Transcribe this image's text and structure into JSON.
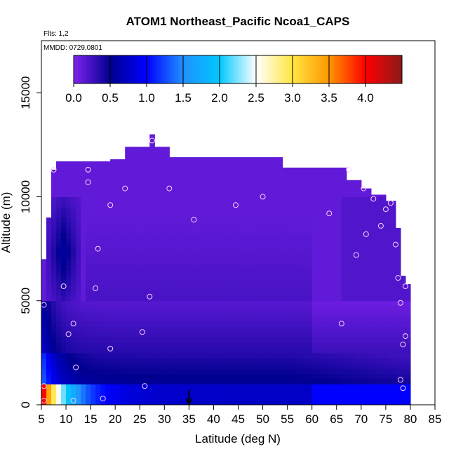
{
  "chart_data": {
    "type": "heatmap",
    "title": "ATOM1 Northeast_Pacific Ncoa1_CAPS",
    "flights_label": "Flts: 1,2",
    "dates_label": "MMDD: 0729,0801",
    "xlabel": "Latitude (deg N)",
    "ylabel": "Altitude (m)",
    "xlim": [
      5,
      85
    ],
    "ylim": [
      0,
      17500
    ],
    "x_ticks": [
      "5",
      "10",
      "15",
      "20",
      "25",
      "30",
      "35",
      "40",
      "45",
      "50",
      "55",
      "60",
      "65",
      "70",
      "75",
      "80",
      "85"
    ],
    "y_ticks": [
      "0",
      "5000",
      "10000",
      "15000"
    ],
    "colorbar": {
      "range": [
        0,
        4.5
      ],
      "tick_labels": [
        "0.0",
        "0.5",
        "1.0",
        "1.5",
        "2.0",
        "2.5",
        "3.0",
        "3.5",
        "4.0"
      ],
      "colors": [
        "#7f22ee",
        "#00008f",
        "#0000ff",
        "#2090ff",
        "#00c8ff",
        "#ffffff",
        "#ffe640",
        "#ff9600",
        "#ff0000",
        "#8b1a1a"
      ]
    },
    "grid": false,
    "legend": "colorbar-top",
    "arrow_marker_latitude": 35,
    "profile_points": [
      [
        5.5,
        4800
      ],
      [
        5.5,
        900
      ],
      [
        5.5,
        200
      ],
      [
        7.5,
        11300
      ],
      [
        9.5,
        5700
      ],
      [
        10.5,
        3400
      ],
      [
        11.5,
        3900
      ],
      [
        11.5,
        200
      ],
      [
        12,
        1800
      ],
      [
        14.5,
        11300
      ],
      [
        14.5,
        10700
      ],
      [
        16,
        5600
      ],
      [
        16.5,
        7500
      ],
      [
        17.5,
        300
      ],
      [
        19,
        9600
      ],
      [
        19,
        2700
      ],
      [
        22,
        10400
      ],
      [
        25.5,
        3500
      ],
      [
        26,
        900
      ],
      [
        27,
        5200
      ],
      [
        27.5,
        12700
      ],
      [
        31,
        10400
      ],
      [
        36,
        8900
      ],
      [
        44.5,
        9600
      ],
      [
        50,
        10000
      ],
      [
        63.5,
        9200
      ],
      [
        66,
        3900
      ],
      [
        67.5,
        11300
      ],
      [
        69,
        7200
      ],
      [
        70.5,
        10400
      ],
      [
        71,
        8200
      ],
      [
        72.5,
        9900
      ],
      [
        74,
        8600
      ],
      [
        75,
        9400
      ],
      [
        76,
        9700
      ],
      [
        77,
        7700
      ],
      [
        77.5,
        6100
      ],
      [
        78,
        4900
      ],
      [
        78,
        1200
      ],
      [
        78.5,
        2900
      ],
      [
        78.5,
        800
      ],
      [
        79,
        3300
      ],
      [
        79,
        5700
      ]
    ],
    "marker_color": "#ffd0ff",
    "region_fill": "#8a26ee"
  }
}
